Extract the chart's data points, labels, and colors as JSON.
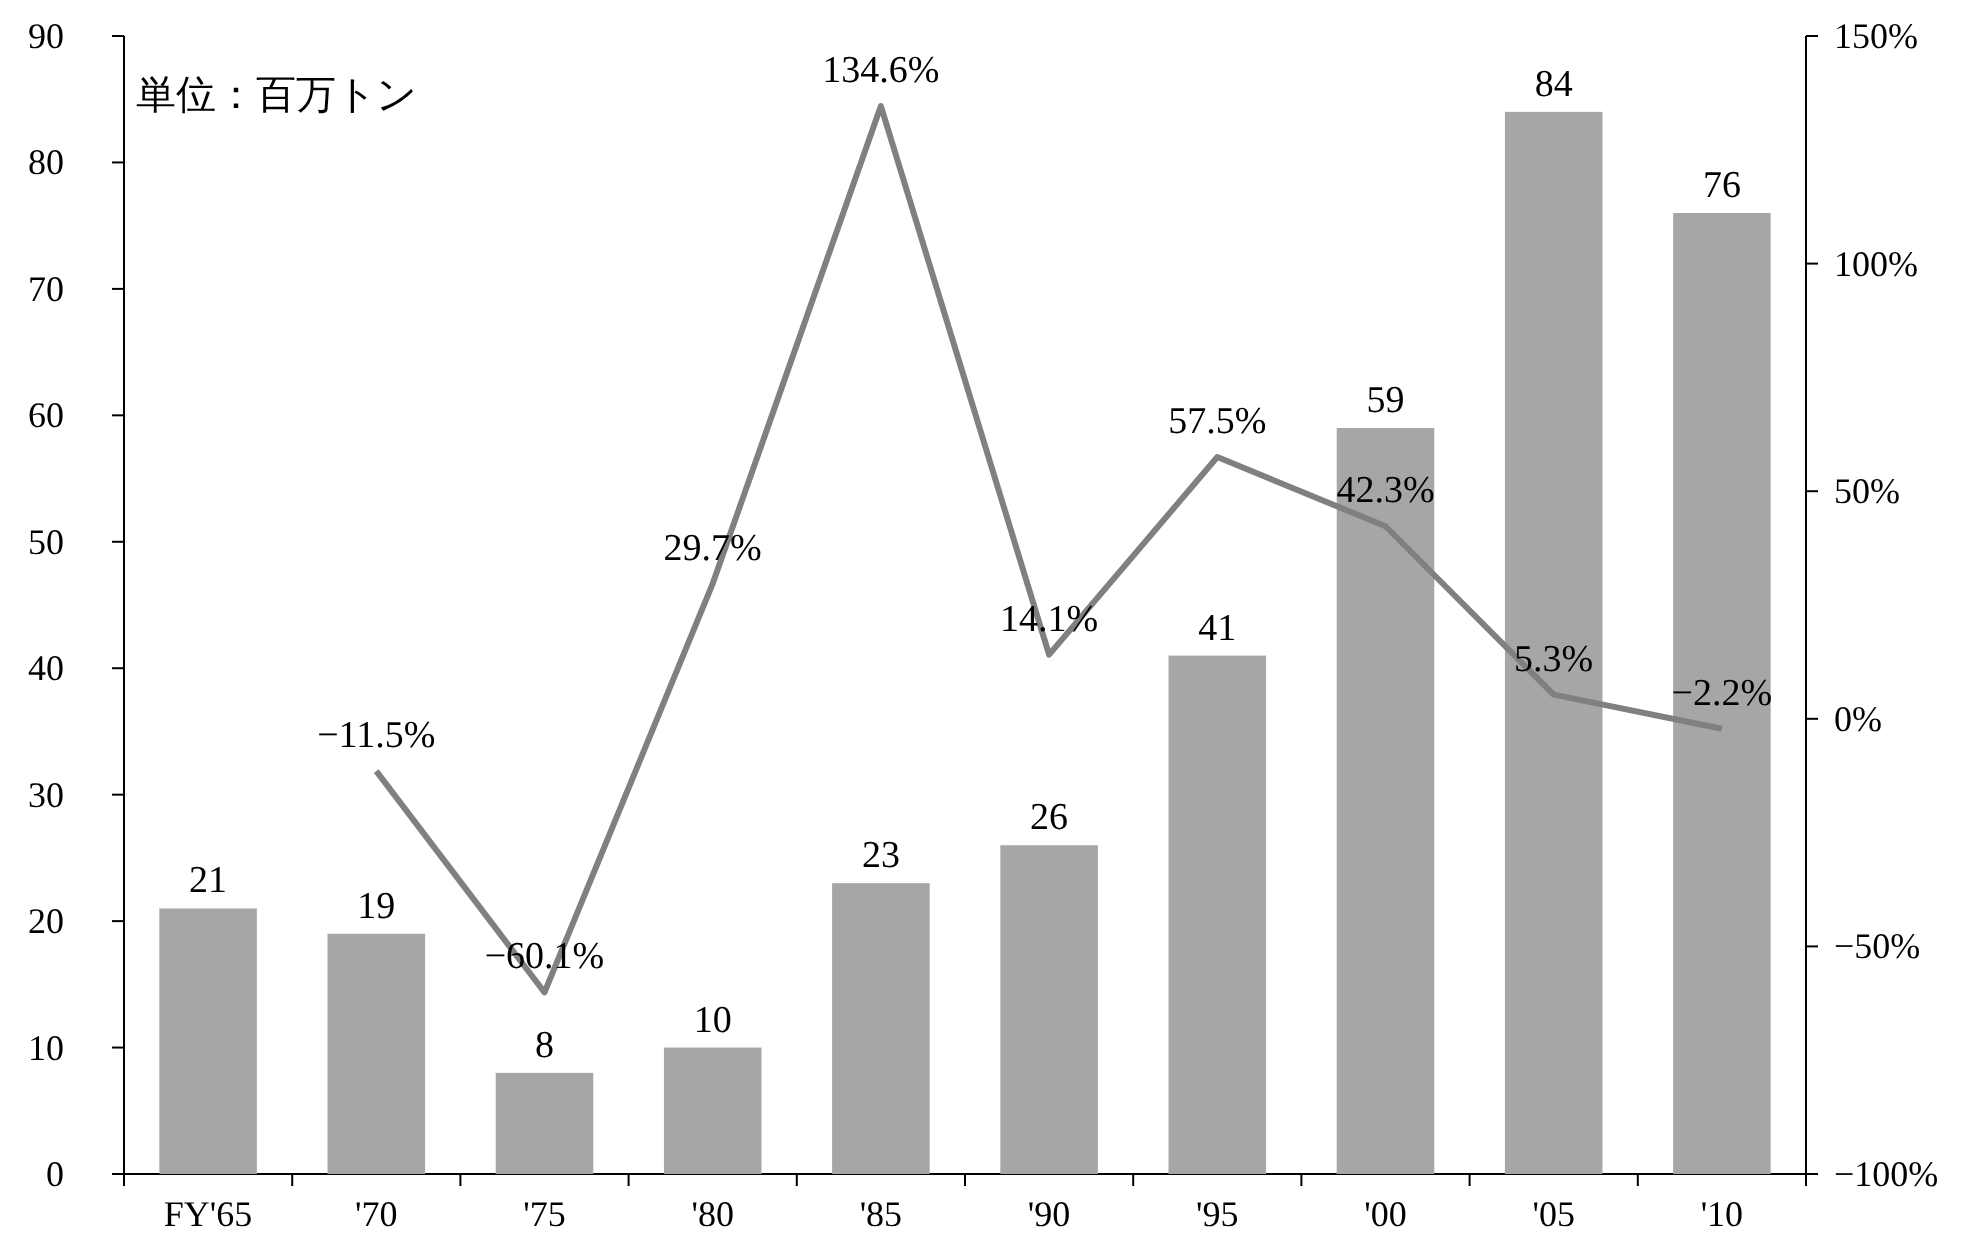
{
  "chart_data": {
    "type": "bar",
    "categories": [
      "FY'65",
      "'70",
      "'75",
      "'80",
      "'85",
      "'90",
      "'95",
      "'00",
      "'05",
      "'10"
    ],
    "series": [
      {
        "color": "#a6a6a6",
        "values": [
          21,
          19,
          8,
          10,
          23,
          26,
          41,
          59,
          84,
          76
        ],
        "value_labels": [
          "21",
          "19",
          "8",
          "10",
          "23",
          "26",
          "41",
          "59",
          "84",
          "76"
        ]
      },
      {
        "type": "line",
        "axis": "y2",
        "color": "#808080",
        "values": [
          null,
          -11.5,
          -60.1,
          29.7,
          134.6,
          14.1,
          57.5,
          42.3,
          5.3,
          -2.2
        ],
        "value_labels": [
          null,
          "−11.5%",
          "−60.1%",
          "29.7%",
          "134.6%",
          "14.1%",
          "57.5%",
          "42.3%",
          "5.3%",
          "−2.2%"
        ]
      }
    ],
    "ylim": [
      0,
      90
    ],
    "yticks": [
      0,
      10,
      20,
      30,
      40,
      50,
      60,
      70,
      80,
      90
    ],
    "y2lim": [
      -100,
      150
    ],
    "y2ticks": [
      {
        "value": -100,
        "label": "−100%"
      },
      {
        "value": -50,
        "label": "−50%"
      },
      {
        "value": 0,
        "label": "0%"
      },
      {
        "value": 50,
        "label": "50%"
      },
      {
        "value": 100,
        "label": "100%"
      },
      {
        "value": 150,
        "label": "150%"
      }
    ],
    "annotations": [
      "単位：百万トン"
    ],
    "grid": false,
    "marker": "none",
    "line_style": "solid"
  }
}
